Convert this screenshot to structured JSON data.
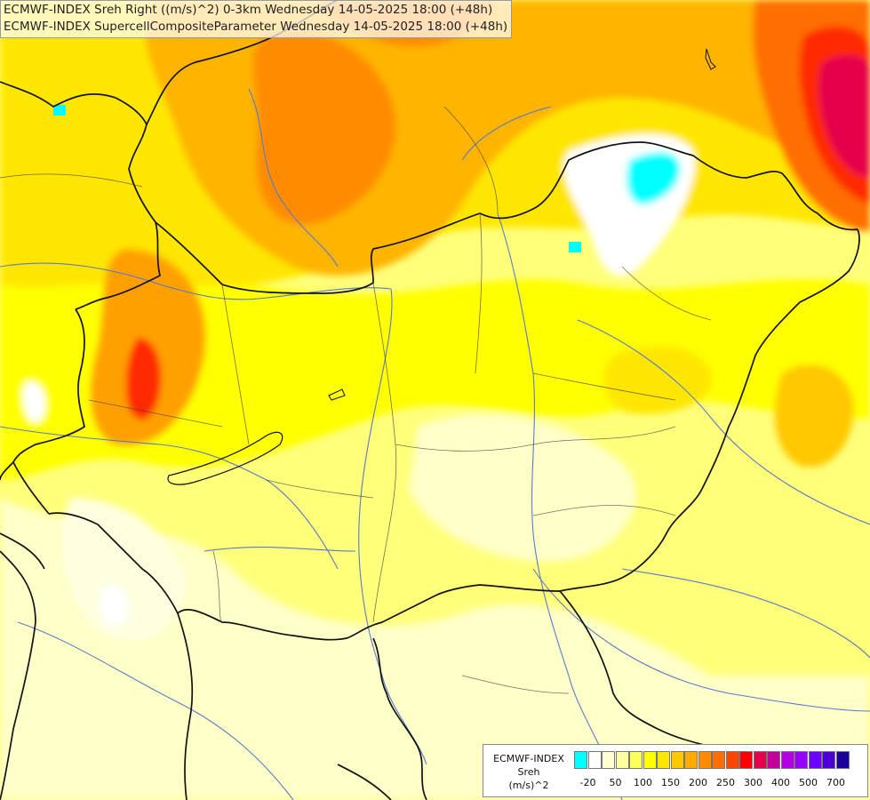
{
  "titles": {
    "line1": "ECMWF-INDEX Sreh Right ((m/s)^2) 0-3km Wednesday 14-05-2025 18:00 (+48h)",
    "line2": "ECMWF-INDEX SupercellCompositeParameter Wednesday 14-05-2025 18:00 (+48h)"
  },
  "legend": {
    "line1": "ECMWF-INDEX",
    "line2": "Sreh",
    "line3": "(m/s)^2",
    "colors": [
      "#00ffff",
      "#ffffff",
      "#ffffd2",
      "#ffffa0",
      "#ffff5a",
      "#ffff00",
      "#ffe600",
      "#ffc800",
      "#ffaa00",
      "#ff8c00",
      "#ff6e00",
      "#ff4600",
      "#ff0000",
      "#e6004b",
      "#c8009b",
      "#b400e1",
      "#9600ff",
      "#6e00ff",
      "#4b00d7",
      "#1e009b"
    ],
    "ticks": [
      "-20",
      "50",
      "100",
      "150",
      "200",
      "250",
      "300",
      "400",
      "500",
      "700"
    ]
  },
  "map_colors": {
    "background": "#ffff7a",
    "pale": "#ffffc8",
    "yellow": "#ffff00",
    "gold": "#ffe600",
    "orange": "#ffa000",
    "dark_orange": "#ff8200",
    "red": "#ff2a00",
    "crimson": "#e6004b",
    "cyan": "#00ffff",
    "border": "#111111",
    "river": "#5a7acc"
  }
}
